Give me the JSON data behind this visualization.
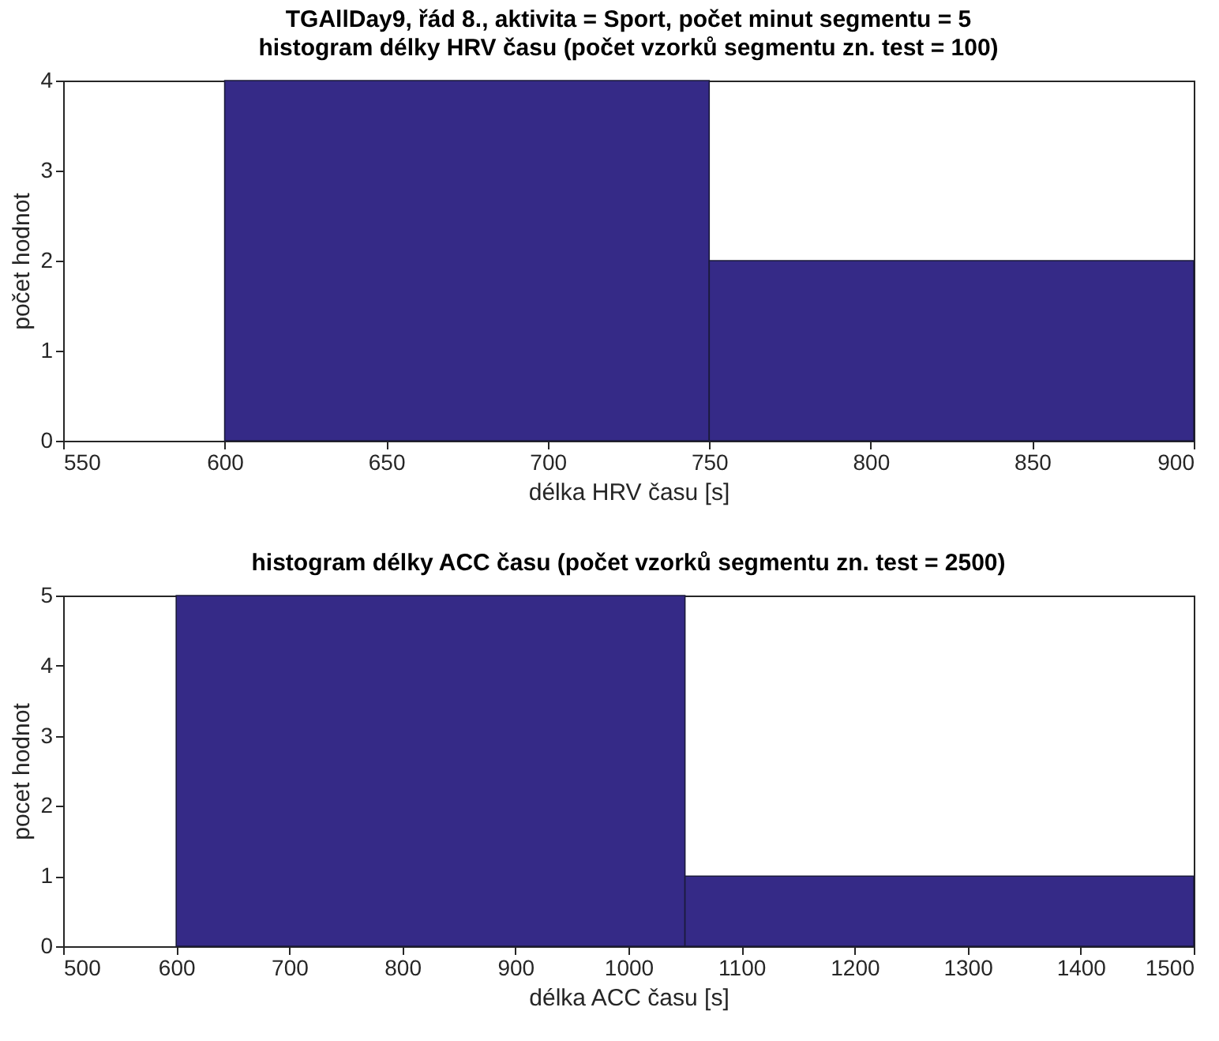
{
  "chart_data": [
    {
      "type": "histogram",
      "title": "TGAllDay9, řád 8., aktivita = Sport, počet minut segmentu = 5",
      "subtitle": "histogram délky HRV času (počet vzorků segmentu zn. test = 100)",
      "xlabel": "délka HRV času [s]",
      "ylabel": "počet hodnot",
      "bins": [
        600,
        750,
        900
      ],
      "values": [
        4,
        2
      ],
      "color": "#352a87",
      "xlim": [
        550,
        900
      ],
      "xticks": [
        550,
        600,
        650,
        700,
        750,
        800,
        850,
        900
      ],
      "ylim": [
        0,
        4
      ],
      "yticks": [
        0,
        1,
        2,
        3,
        4
      ]
    },
    {
      "type": "histogram",
      "title": "histogram délky ACC času (počet vzorků segmentu zn. test = 2500)",
      "xlabel": "délka ACC času [s]",
      "ylabel": "pocet hodnot",
      "bins": [
        600,
        1050,
        1500
      ],
      "values": [
        5,
        1
      ],
      "color": "#352a87",
      "xlim": [
        500,
        1500
      ],
      "xticks": [
        500,
        600,
        700,
        800,
        900,
        1000,
        1100,
        1200,
        1300,
        1400,
        1500
      ],
      "ylim": [
        0,
        5
      ],
      "yticks": [
        0,
        1,
        2,
        3,
        4,
        5
      ]
    }
  ]
}
